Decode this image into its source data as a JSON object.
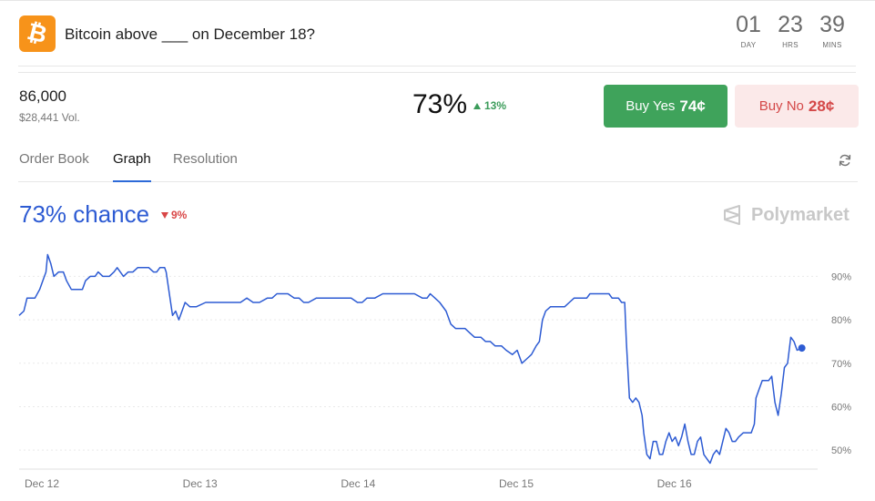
{
  "market": {
    "title": "Bitcoin above ___ on December 18?",
    "logo_icon": "bitcoin-icon",
    "logo_color": "#f7931a"
  },
  "countdown": [
    {
      "value": "01",
      "label": "DAY"
    },
    {
      "value": "23",
      "label": "HRS"
    },
    {
      "value": "39",
      "label": "MINS"
    }
  ],
  "outcome": {
    "strike": "86,000",
    "volume": "$28,441 Vol.",
    "probability": "73%",
    "change": "13%",
    "change_direction": "up"
  },
  "buttons": {
    "yes_label": "Buy Yes",
    "yes_price": "74¢",
    "yes_color": "#3fa35b",
    "no_label": "Buy No",
    "no_price": "28¢",
    "no_color": "#d44848"
  },
  "tabs": [
    {
      "label": "Order Book",
      "active": false
    },
    {
      "label": "Graph",
      "active": true
    },
    {
      "label": "Resolution",
      "active": false
    }
  ],
  "graph": {
    "chance_label": "73% chance",
    "chance_change": "9%",
    "chance_change_direction": "down",
    "brand": "Polymarket",
    "line_color": "#2d5bd3"
  },
  "chart_data": {
    "type": "line",
    "x_unit": "days",
    "xticks": [
      "Dec 12",
      "Dec 13",
      "Dec 14",
      "Dec 15",
      "Dec 16"
    ],
    "ytick_labels": [
      "90%",
      "80%",
      "70%",
      "60%",
      "50%"
    ],
    "yticks": [
      90,
      80,
      70,
      60,
      50
    ],
    "ylim": [
      45,
      97
    ],
    "xlim": [
      0,
      5.05
    ],
    "grid": true,
    "series": [
      {
        "values": [
          [
            0.0,
            81
          ],
          [
            0.03,
            82
          ],
          [
            0.05,
            85
          ],
          [
            0.1,
            85
          ],
          [
            0.13,
            87
          ],
          [
            0.15,
            89
          ],
          [
            0.17,
            91
          ],
          [
            0.18,
            95
          ],
          [
            0.2,
            93
          ],
          [
            0.22,
            90
          ],
          [
            0.25,
            91
          ],
          [
            0.28,
            91
          ],
          [
            0.3,
            89
          ],
          [
            0.33,
            87
          ],
          [
            0.37,
            87
          ],
          [
            0.4,
            87
          ],
          [
            0.42,
            89
          ],
          [
            0.45,
            90
          ],
          [
            0.48,
            90
          ],
          [
            0.5,
            91
          ],
          [
            0.53,
            90
          ],
          [
            0.57,
            90
          ],
          [
            0.6,
            91
          ],
          [
            0.62,
            92
          ],
          [
            0.64,
            91
          ],
          [
            0.66,
            90
          ],
          [
            0.69,
            91
          ],
          [
            0.72,
            91
          ],
          [
            0.75,
            92
          ],
          [
            0.78,
            92
          ],
          [
            0.82,
            92
          ],
          [
            0.85,
            91
          ],
          [
            0.87,
            91
          ],
          [
            0.89,
            92
          ],
          [
            0.92,
            92
          ],
          [
            0.93,
            91
          ],
          [
            0.95,
            86
          ],
          [
            0.97,
            81
          ],
          [
            0.99,
            82
          ],
          [
            1.01,
            80
          ],
          [
            1.03,
            82
          ],
          [
            1.05,
            84
          ],
          [
            1.08,
            83
          ],
          [
            1.12,
            83
          ],
          [
            1.18,
            84
          ],
          [
            1.25,
            84
          ],
          [
            1.3,
            84
          ],
          [
            1.35,
            84
          ],
          [
            1.4,
            84
          ],
          [
            1.44,
            85
          ],
          [
            1.48,
            84
          ],
          [
            1.52,
            84
          ],
          [
            1.57,
            85
          ],
          [
            1.6,
            85
          ],
          [
            1.63,
            86
          ],
          [
            1.67,
            86
          ],
          [
            1.7,
            86
          ],
          [
            1.74,
            85
          ],
          [
            1.77,
            85
          ],
          [
            1.8,
            84
          ],
          [
            1.83,
            84
          ],
          [
            1.88,
            85
          ],
          [
            1.92,
            85
          ],
          [
            1.96,
            85
          ],
          [
            2.0,
            85
          ],
          [
            2.05,
            85
          ],
          [
            2.1,
            85
          ],
          [
            2.14,
            84
          ],
          [
            2.17,
            84
          ],
          [
            2.2,
            85
          ],
          [
            2.25,
            85
          ],
          [
            2.3,
            86
          ],
          [
            2.35,
            86
          ],
          [
            2.4,
            86
          ],
          [
            2.45,
            86
          ],
          [
            2.5,
            86
          ],
          [
            2.55,
            85
          ],
          [
            2.58,
            85
          ],
          [
            2.6,
            86
          ],
          [
            2.63,
            85
          ],
          [
            2.66,
            84
          ],
          [
            2.7,
            82
          ],
          [
            2.73,
            79
          ],
          [
            2.76,
            78
          ],
          [
            2.79,
            78
          ],
          [
            2.82,
            78
          ],
          [
            2.85,
            77
          ],
          [
            2.88,
            76
          ],
          [
            2.92,
            76
          ],
          [
            2.95,
            75
          ],
          [
            2.98,
            75
          ],
          [
            3.01,
            74
          ],
          [
            3.05,
            74
          ],
          [
            3.08,
            73
          ],
          [
            3.12,
            72
          ],
          [
            3.15,
            73
          ],
          [
            3.18,
            70
          ],
          [
            3.21,
            71
          ],
          [
            3.24,
            72
          ],
          [
            3.27,
            74
          ],
          [
            3.29,
            75
          ],
          [
            3.31,
            80
          ],
          [
            3.33,
            82
          ],
          [
            3.36,
            83
          ],
          [
            3.4,
            83
          ],
          [
            3.43,
            83
          ],
          [
            3.45,
            83
          ],
          [
            3.48,
            84
          ],
          [
            3.51,
            85
          ],
          [
            3.54,
            85
          ],
          [
            3.57,
            85
          ],
          [
            3.59,
            85
          ],
          [
            3.61,
            86
          ],
          [
            3.64,
            86
          ],
          [
            3.67,
            86
          ],
          [
            3.69,
            86
          ],
          [
            3.71,
            86
          ],
          [
            3.73,
            86
          ],
          [
            3.75,
            85
          ],
          [
            3.77,
            85
          ],
          [
            3.79,
            85
          ],
          [
            3.81,
            84
          ],
          [
            3.83,
            84
          ],
          [
            3.84,
            75
          ],
          [
            3.86,
            62
          ],
          [
            3.88,
            61
          ],
          [
            3.9,
            62
          ],
          [
            3.92,
            61
          ],
          [
            3.94,
            58
          ],
          [
            3.95,
            54
          ],
          [
            3.97,
            49
          ],
          [
            3.99,
            48
          ],
          [
            4.01,
            52
          ],
          [
            4.03,
            52
          ],
          [
            4.05,
            49
          ],
          [
            4.07,
            49
          ],
          [
            4.09,
            52
          ],
          [
            4.11,
            54
          ],
          [
            4.13,
            52
          ],
          [
            4.15,
            53
          ],
          [
            4.17,
            51
          ],
          [
            4.19,
            53
          ],
          [
            4.21,
            56
          ],
          [
            4.23,
            52
          ],
          [
            4.25,
            49
          ],
          [
            4.27,
            49
          ],
          [
            4.29,
            52
          ],
          [
            4.31,
            53
          ],
          [
            4.33,
            49
          ],
          [
            4.35,
            48
          ],
          [
            4.37,
            47
          ],
          [
            4.39,
            49
          ],
          [
            4.41,
            50
          ],
          [
            4.43,
            49
          ],
          [
            4.45,
            52
          ],
          [
            4.47,
            55
          ],
          [
            4.49,
            54
          ],
          [
            4.51,
            52
          ],
          [
            4.53,
            52
          ],
          [
            4.55,
            53
          ],
          [
            4.58,
            54
          ],
          [
            4.61,
            54
          ],
          [
            4.63,
            54
          ],
          [
            4.65,
            56
          ],
          [
            4.66,
            62
          ],
          [
            4.68,
            64
          ],
          [
            4.7,
            66
          ],
          [
            4.72,
            66
          ],
          [
            4.74,
            66
          ],
          [
            4.76,
            67
          ],
          [
            4.78,
            61
          ],
          [
            4.8,
            58
          ],
          [
            4.82,
            63
          ],
          [
            4.84,
            69
          ],
          [
            4.86,
            70
          ],
          [
            4.88,
            76
          ],
          [
            4.9,
            75
          ],
          [
            4.92,
            73
          ],
          [
            4.95,
            73.5
          ]
        ]
      }
    ]
  }
}
